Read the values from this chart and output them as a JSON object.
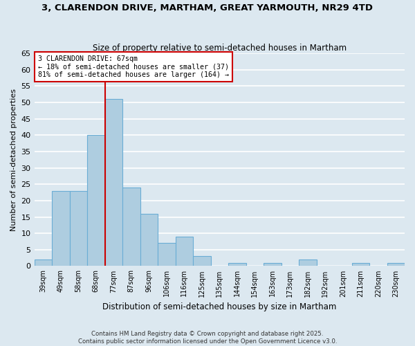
{
  "title": "3, CLARENDON DRIVE, MARTHAM, GREAT YARMOUTH, NR29 4TD",
  "subtitle": "Size of property relative to semi-detached houses in Martham",
  "xlabel": "Distribution of semi-detached houses by size in Martham",
  "ylabel": "Number of semi-detached properties",
  "bar_labels": [
    "39sqm",
    "49sqm",
    "58sqm",
    "68sqm",
    "77sqm",
    "87sqm",
    "96sqm",
    "106sqm",
    "116sqm",
    "125sqm",
    "135sqm",
    "144sqm",
    "154sqm",
    "163sqm",
    "173sqm",
    "182sqm",
    "192sqm",
    "201sqm",
    "211sqm",
    "220sqm",
    "230sqm"
  ],
  "bar_values": [
    2,
    23,
    23,
    40,
    51,
    24,
    16,
    7,
    9,
    3,
    0,
    1,
    0,
    1,
    0,
    2,
    0,
    0,
    1,
    0,
    1
  ],
  "bar_color": "#aecde0",
  "bar_edge_color": "#6aadd5",
  "property_line_idx": 3,
  "property_line_color": "#cc0000",
  "ylim": [
    0,
    65
  ],
  "yticks": [
    0,
    5,
    10,
    15,
    20,
    25,
    30,
    35,
    40,
    45,
    50,
    55,
    60,
    65
  ],
  "annotation_title": "3 CLARENDON DRIVE: 67sqm",
  "annotation_line1": "← 18% of semi-detached houses are smaller (37)",
  "annotation_line2": "81% of semi-detached houses are larger (164) →",
  "annotation_box_color": "#ffffff",
  "annotation_box_edge": "#cc0000",
  "footnote1": "Contains HM Land Registry data © Crown copyright and database right 2025.",
  "footnote2": "Contains public sector information licensed under the Open Government Licence v3.0.",
  "bg_color": "#dce8f0",
  "grid_color": "#ffffff"
}
